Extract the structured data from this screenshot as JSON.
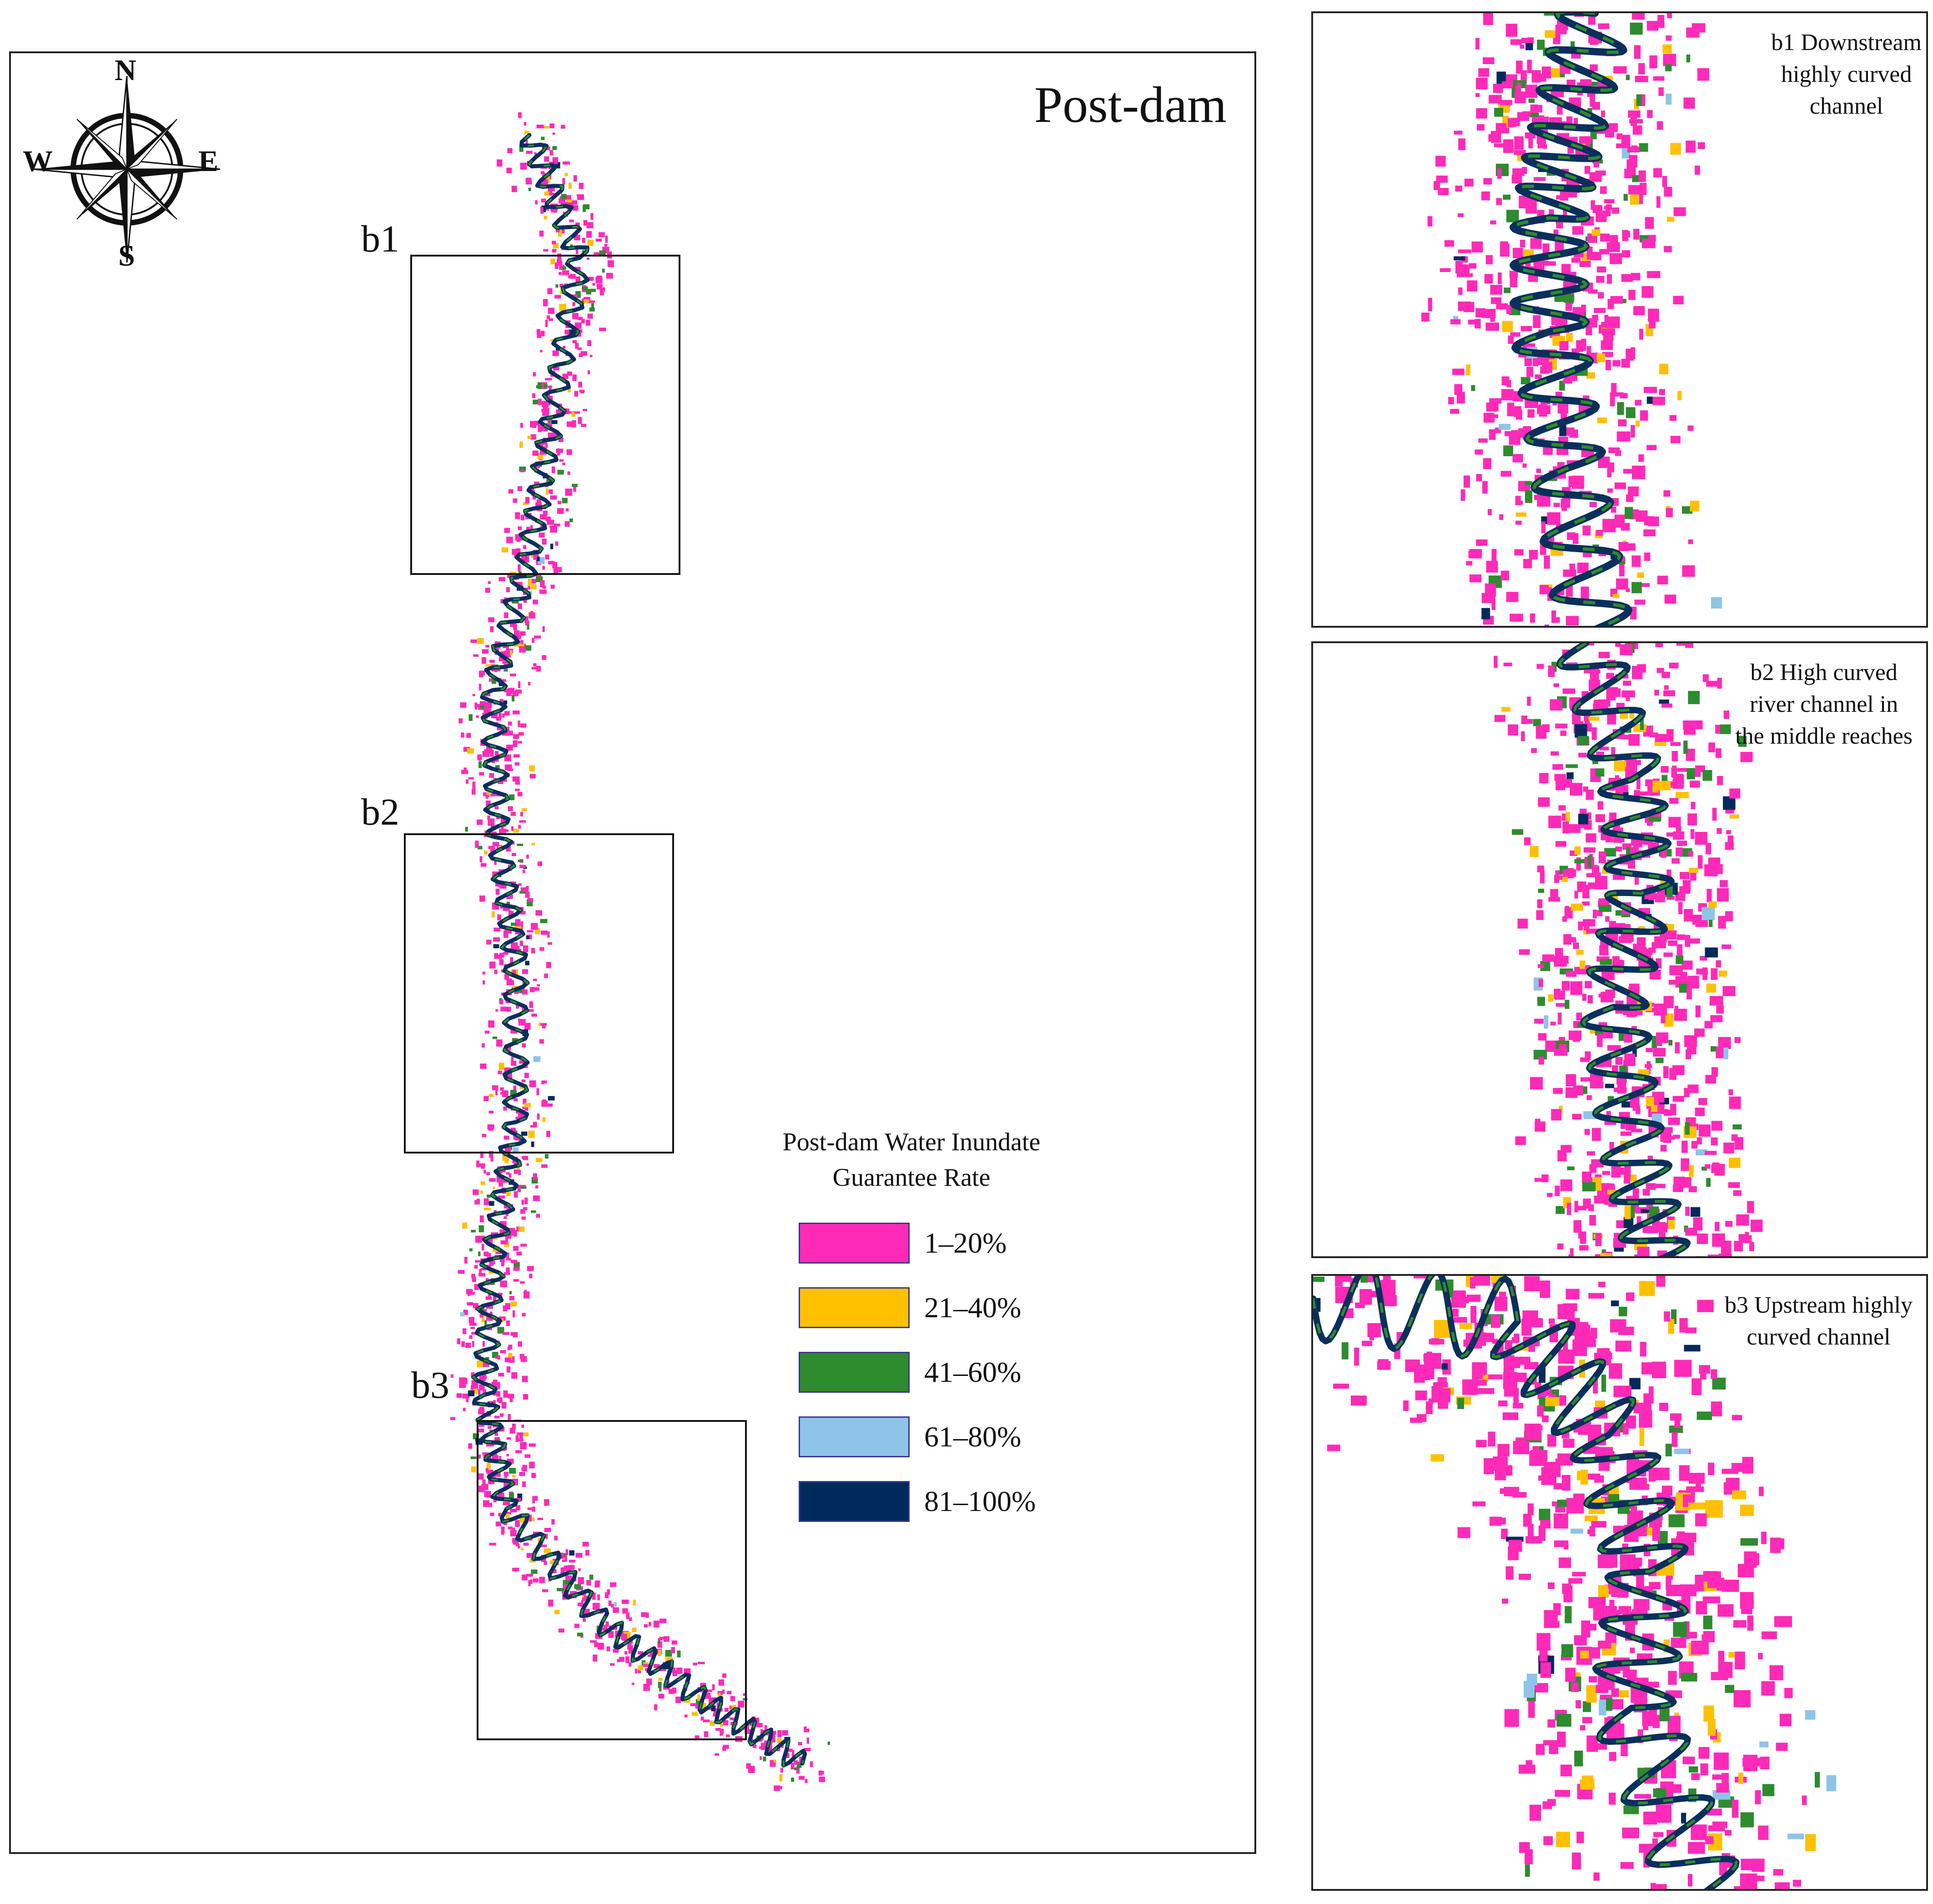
{
  "main_map": {
    "title": "Post-dam",
    "compass": {
      "north": "N",
      "south": "S",
      "east": "E",
      "west": "W",
      "icon": "compass-rose-icon"
    },
    "boxes": [
      {
        "label": "b1"
      },
      {
        "label": "b2"
      },
      {
        "label": "b3"
      }
    ]
  },
  "legend": {
    "title": "Post-dam Water Inundate Guarantee Rate",
    "items": [
      {
        "label": "1–20%",
        "color": "#ff2ab8"
      },
      {
        "label": "21–40%",
        "color": "#ffc000"
      },
      {
        "label": "41–60%",
        "color": "#2e8b2e"
      },
      {
        "label": "61–80%",
        "color": "#8ec4e8"
      },
      {
        "label": "81–100%",
        "color": "#002a5c"
      }
    ]
  },
  "insets": [
    {
      "caption_lines": [
        "b1 Downstream",
        "highly curved",
        "channel"
      ]
    },
    {
      "caption_lines": [
        "b2 High curved",
        "river channel in",
        "the middle reaches"
      ]
    },
    {
      "caption_lines": [
        "b3 Upstream highly",
        "curved channel"
      ]
    }
  ]
}
